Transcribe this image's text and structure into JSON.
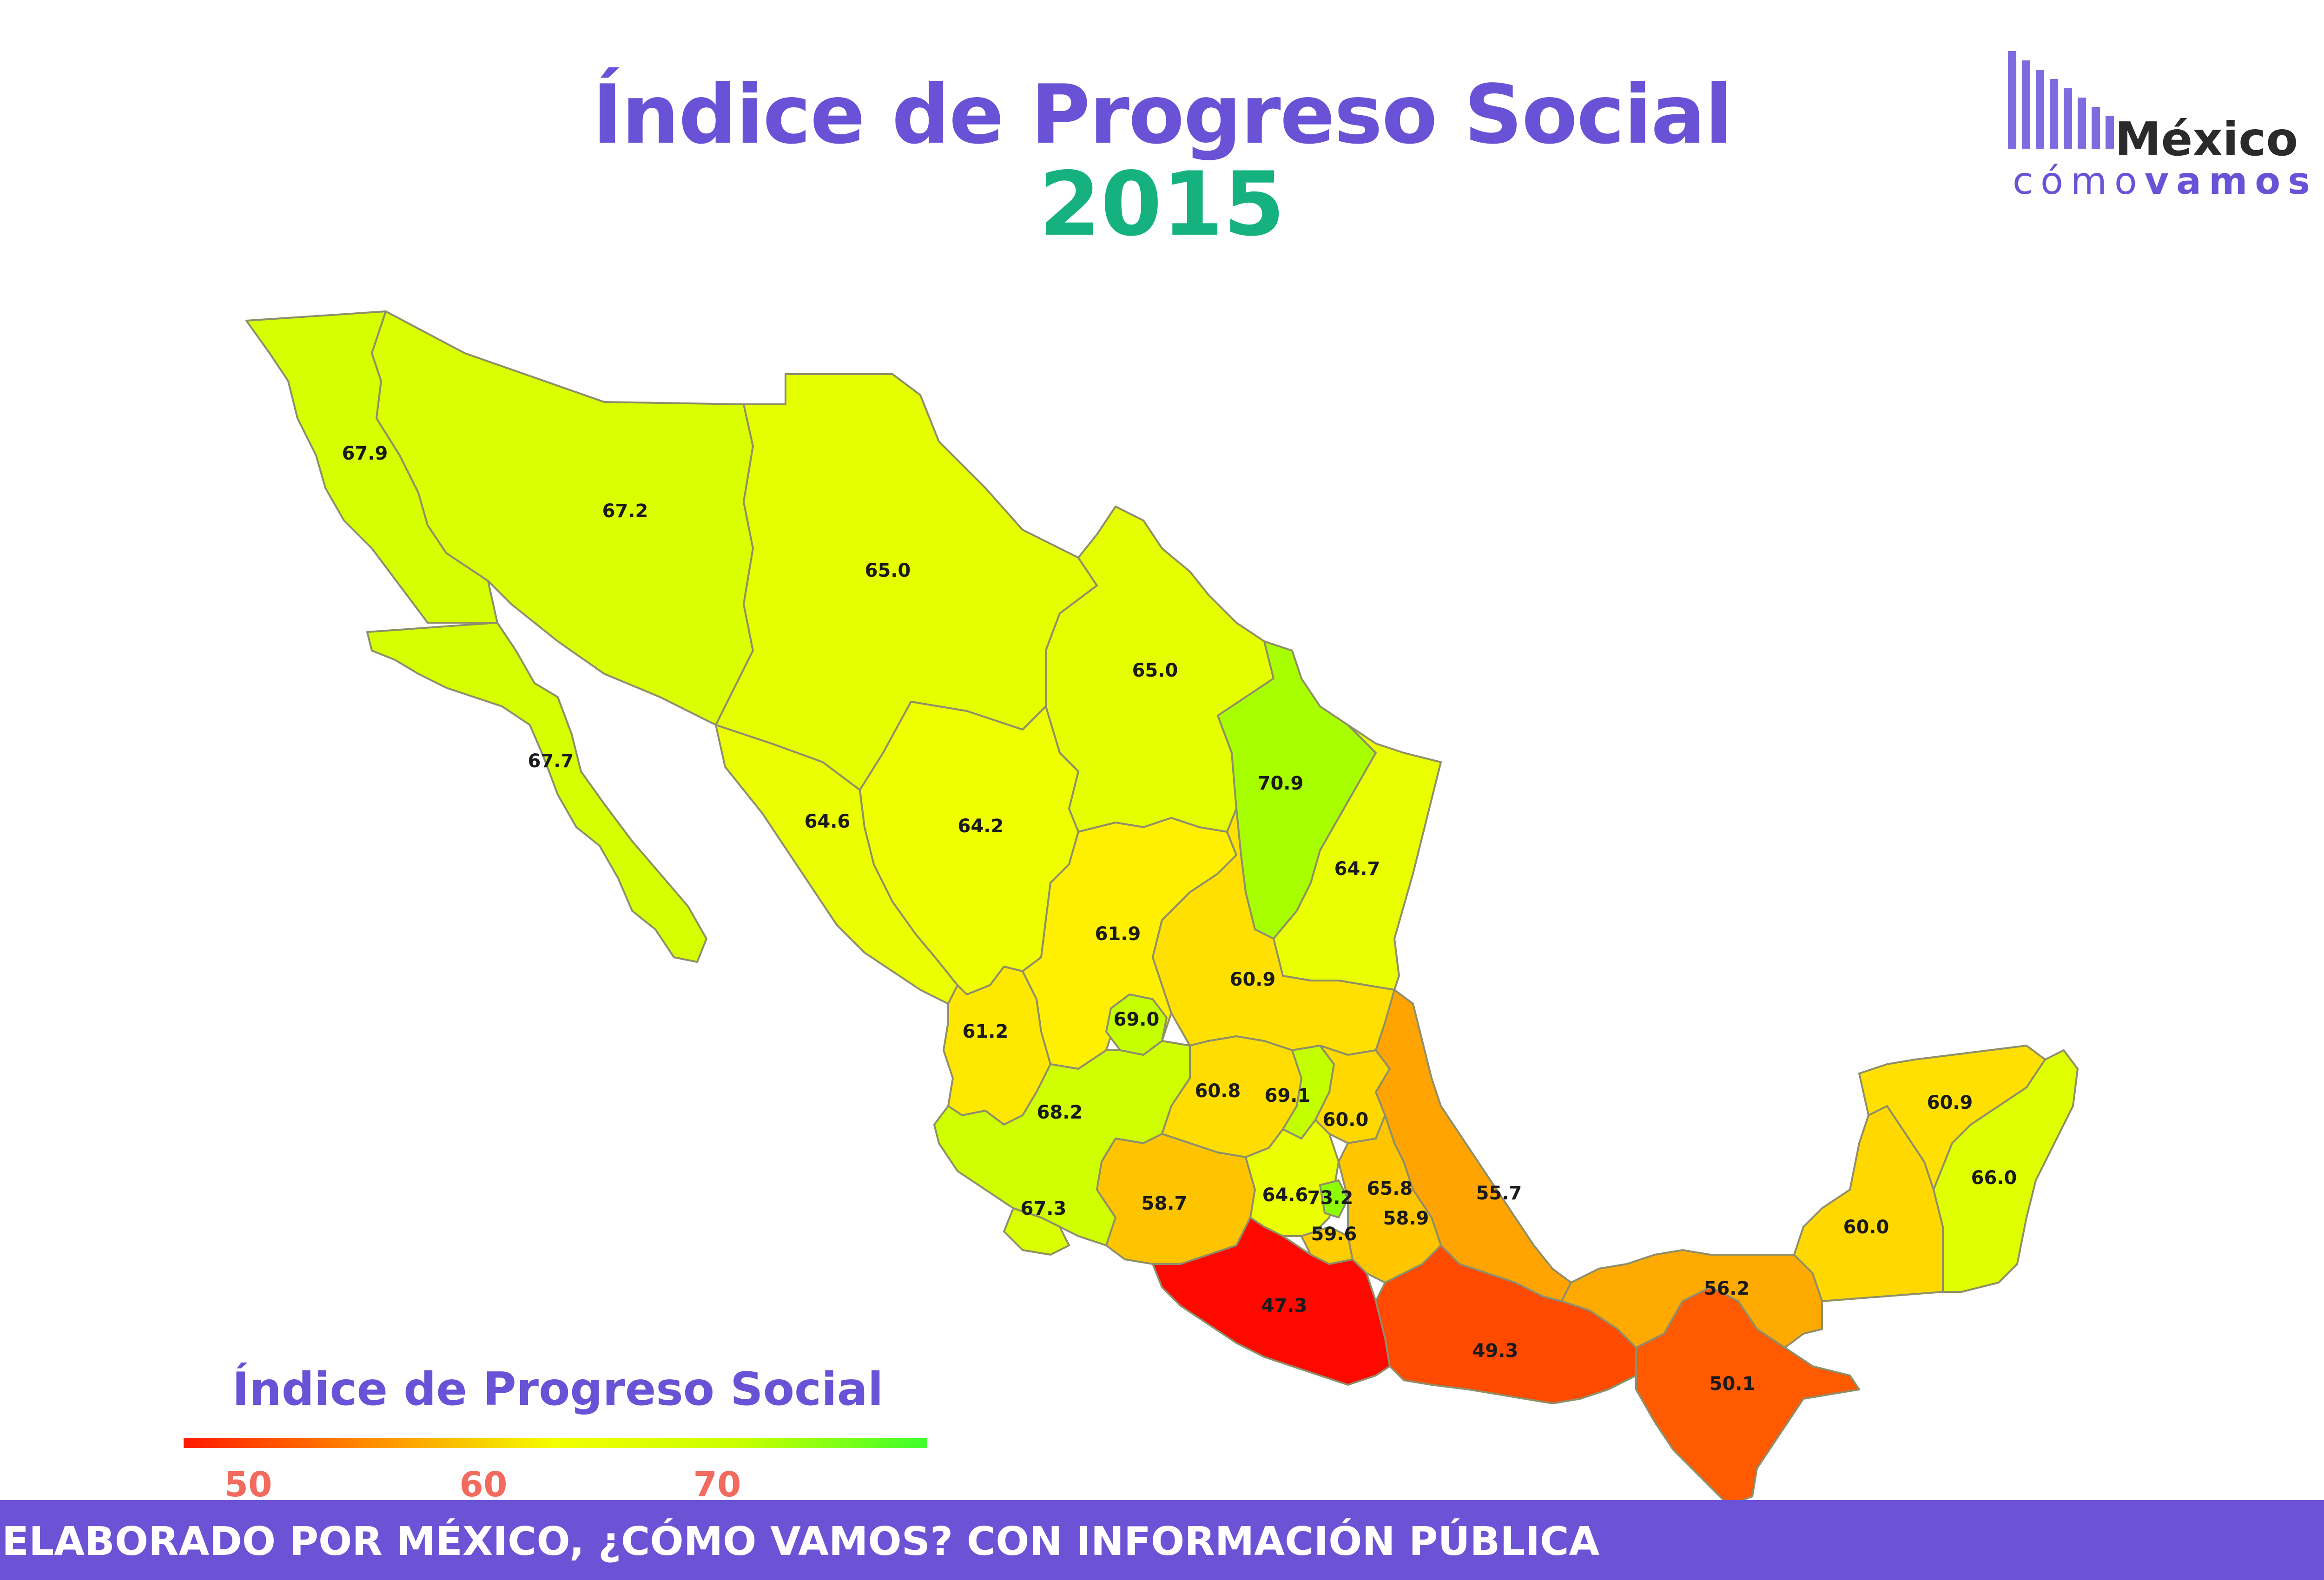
{
  "header": {
    "title": "Índice de Progreso Social",
    "year": "2015"
  },
  "logo": {
    "name": "México",
    "tag_light": "cómo",
    "tag_bold": "vamos"
  },
  "legend": {
    "title": "Índice de Progreso Social",
    "ticks": [
      "50",
      "60",
      "70"
    ],
    "color_low": "#ff1a00",
    "color_mid": "#f3ff00",
    "color_high": "#3dff2d"
  },
  "footer": {
    "text": "ELABORADO POR MÉXICO, ¿CÓMO VAMOS? CON INFORMACIÓN PÚBLICA"
  },
  "map_data": {
    "metric": "Índice de Progreso Social",
    "year": "2015",
    "states": [
      {
        "id": "baja-california",
        "value": "67.9",
        "color": "#d6ff00"
      },
      {
        "id": "baja-california-sur",
        "value": "67.7",
        "color": "#d6ff00"
      },
      {
        "id": "sonora",
        "value": "67.2",
        "color": "#d9ff00"
      },
      {
        "id": "chihuahua",
        "value": "65.0",
        "color": "#e6ff00"
      },
      {
        "id": "coahuila",
        "value": "65.0",
        "color": "#e6ff00"
      },
      {
        "id": "nuevo-leon",
        "value": "70.9",
        "color": "#a8ff00"
      },
      {
        "id": "tamaulipas",
        "value": "64.7",
        "color": "#eaff00"
      },
      {
        "id": "sinaloa",
        "value": "64.6",
        "color": "#ecff00"
      },
      {
        "id": "durango",
        "value": "64.2",
        "color": "#f0ff00"
      },
      {
        "id": "zacatecas",
        "value": "61.9",
        "color": "#ffef00"
      },
      {
        "id": "san-luis-potosi",
        "value": "60.9",
        "color": "#ffe000"
      },
      {
        "id": "nayarit",
        "value": "61.2",
        "color": "#ffe800"
      },
      {
        "id": "aguascalientes",
        "value": "69.0",
        "color": "#c6ff00"
      },
      {
        "id": "jalisco",
        "value": "68.2",
        "color": "#cfff00"
      },
      {
        "id": "guanajuato",
        "value": "60.8",
        "color": "#ffdd00"
      },
      {
        "id": "queretaro",
        "value": "69.1",
        "color": "#c4ff00"
      },
      {
        "id": "hidalgo",
        "value": "60.0",
        "color": "#ffd800"
      },
      {
        "id": "veracruz",
        "value": "55.7",
        "color": "#ffa400"
      },
      {
        "id": "colima",
        "value": "67.3",
        "color": "#d9ff00"
      },
      {
        "id": "michoacan",
        "value": "58.7",
        "color": "#ffc400"
      },
      {
        "id": "estado-de-mexico",
        "value": "64.6",
        "color": "#ecff00"
      },
      {
        "id": "ciudad-de-mexico",
        "value": "73.2",
        "color": "#8cff00"
      },
      {
        "id": "tlaxcala",
        "value": "65.8",
        "color": "#e2ff00"
      },
      {
        "id": "morelos",
        "value": "59.6",
        "color": "#ffce00"
      },
      {
        "id": "puebla",
        "value": "58.9",
        "color": "#ffc600"
      },
      {
        "id": "guerrero",
        "value": "47.3",
        "color": "#ff0800"
      },
      {
        "id": "oaxaca",
        "value": "49.3",
        "color": "#ff4a00"
      },
      {
        "id": "chiapas",
        "value": "50.1",
        "color": "#ff5a00"
      },
      {
        "id": "tabasco",
        "value": "56.2",
        "color": "#ffaa00"
      },
      {
        "id": "campeche",
        "value": "60.0",
        "color": "#ffd800"
      },
      {
        "id": "yucatan",
        "value": "60.9",
        "color": "#ffe000"
      },
      {
        "id": "quintana-roo",
        "value": "66.0",
        "color": "#e0ff00"
      }
    ]
  }
}
